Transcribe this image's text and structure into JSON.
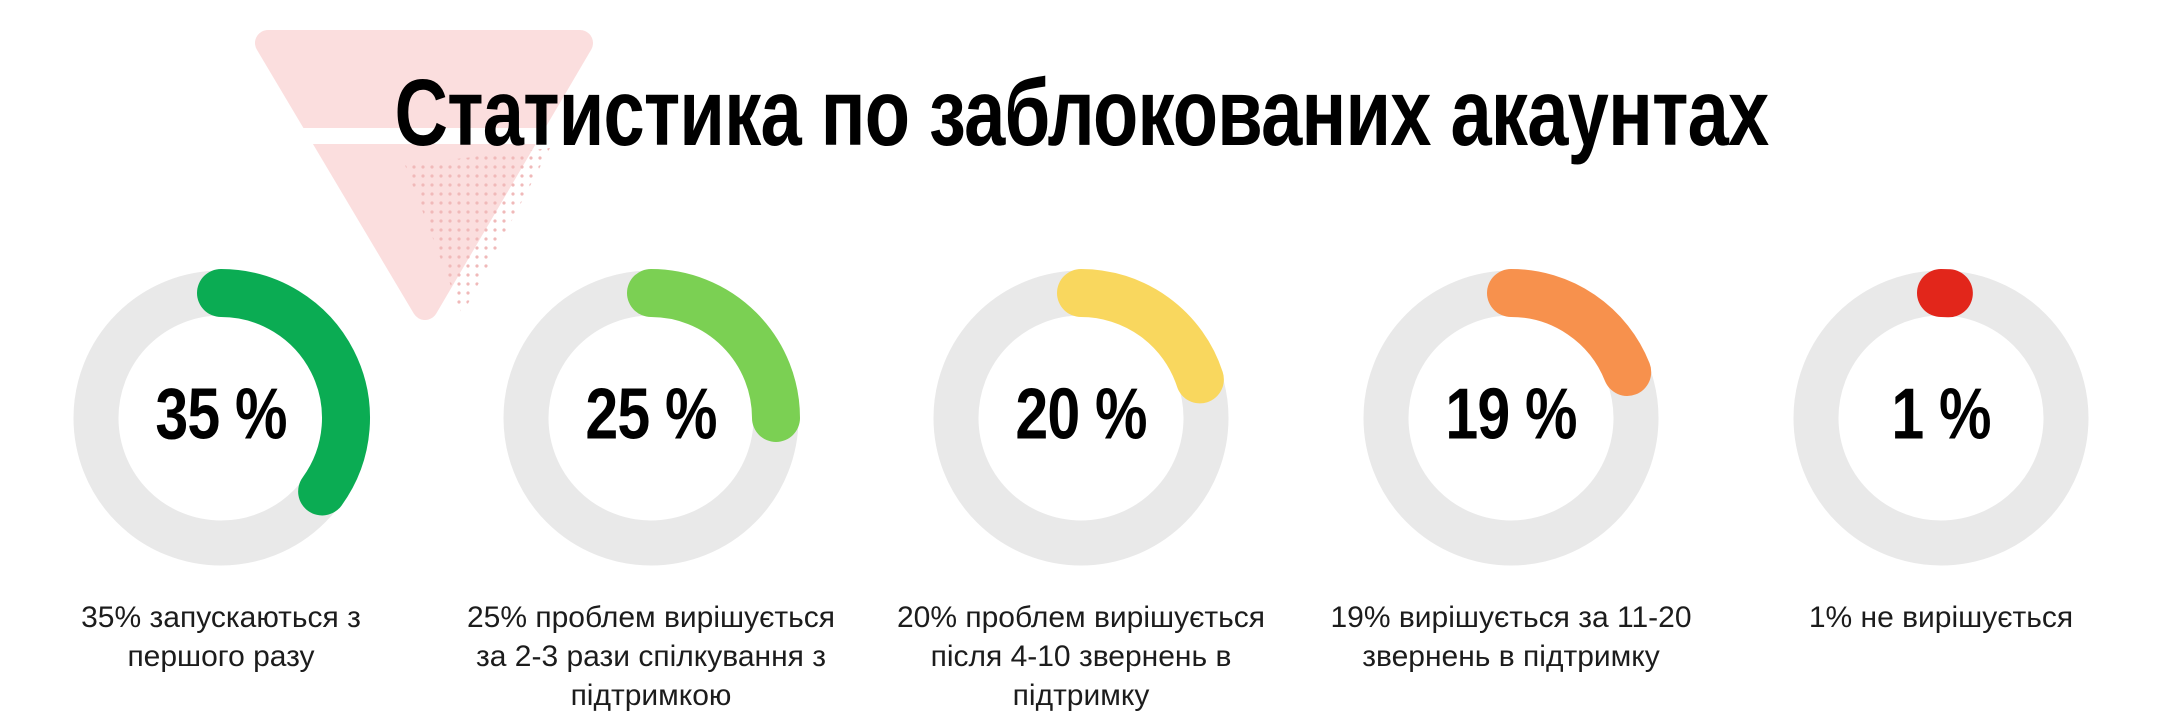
{
  "title": "Статистика по заблокованих акаунтах",
  "chart_data": {
    "type": "donut-gauges",
    "title": "Статистика по заблокованих акаунтах",
    "units": "%",
    "start_angle_deg": 0,
    "direction": "clockwise",
    "track_color": "#e9e9e9",
    "gauges": [
      {
        "value": 35,
        "label": "35 %",
        "color": "#0bac53",
        "caption": "35% запускаються з першого разу"
      },
      {
        "value": 25,
        "label": "25 %",
        "color": "#7bd053",
        "caption": "25% проблем вирішується за 2-3 рази спілкування з підтримкою"
      },
      {
        "value": 20,
        "label": "20 %",
        "color": "#f9d75e",
        "caption": "20% проблем вирішується після 4-10 звернень в підтримку"
      },
      {
        "value": 19,
        "label": "19 %",
        "color": "#f7914d",
        "caption": "19% вирішується за 11-20 звернень в підтримку"
      },
      {
        "value": 1,
        "label": "1 %",
        "color": "#e2261b",
        "caption": "1% не вирішується"
      }
    ]
  },
  "decor": {
    "funnel_color": "#fbdede",
    "funnel_dot_color": "#f0b9b9",
    "stripe_color": "#ffffff"
  }
}
